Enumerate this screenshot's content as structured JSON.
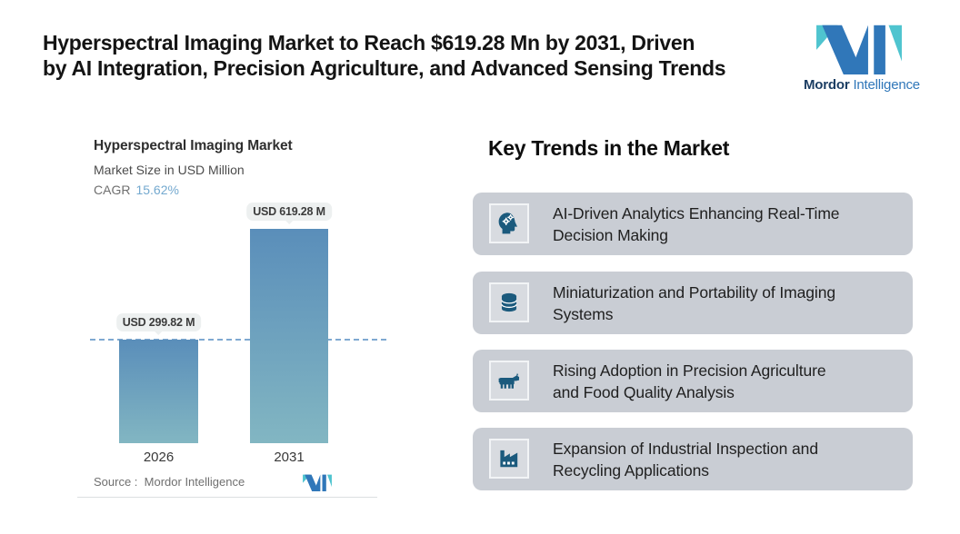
{
  "header": {
    "title_line1": "Hyperspectral Imaging Market to Reach $619.28 Mn by 2031, Driven",
    "title_line2": "by AI Integration, Precision Agriculture, and Advanced Sensing Trends"
  },
  "brand": {
    "name_bold": "Mordor",
    "name_regular": "Intelligence"
  },
  "chart_data": {
    "type": "bar",
    "title": "Hyperspectral Imaging Market",
    "subtitle": "Market Size in USD Million",
    "cagr_label": "CAGR",
    "cagr_value": "15.62%",
    "categories": [
      "2026",
      "2031"
    ],
    "values": [
      299.82,
      619.28
    ],
    "value_labels": [
      "USD 299.82 M",
      "USD 619.28 M"
    ],
    "ylim": [
      0,
      619.28
    ],
    "grid": false,
    "baseline_value": 299.82,
    "source_label": "Source :",
    "source_value": "Mordor Intelligence"
  },
  "trends": {
    "heading": "Key Trends in the Market",
    "items": [
      {
        "icon": "ai-head-gears-icon",
        "line1": "AI-Driven Analytics Enhancing Real-Time",
        "line2": "Decision Making"
      },
      {
        "icon": "database-icon",
        "line1": "Miniaturization and Portability of Imaging",
        "line2": "Systems"
      },
      {
        "icon": "cow-icon",
        "line1": "Rising Adoption in Precision Agriculture",
        "line2": "and Food Quality Analysis"
      },
      {
        "icon": "factory-icon",
        "line1": "Expansion of Industrial Inspection and",
        "line2": "Recycling Applications"
      }
    ]
  },
  "colors": {
    "bar_gradient_top": "#5a8eba",
    "bar_gradient_bottom": "#82b6c2",
    "dashed_line": "#7fa9d1",
    "badge_bg": "#edf0f0",
    "card_bg": "#c9cdd4",
    "icon_color": "#1b5a7d",
    "accent_teal": "#4fc4cf",
    "accent_blue": "#3077b9",
    "cagr_value_color": "#74a9cf"
  }
}
